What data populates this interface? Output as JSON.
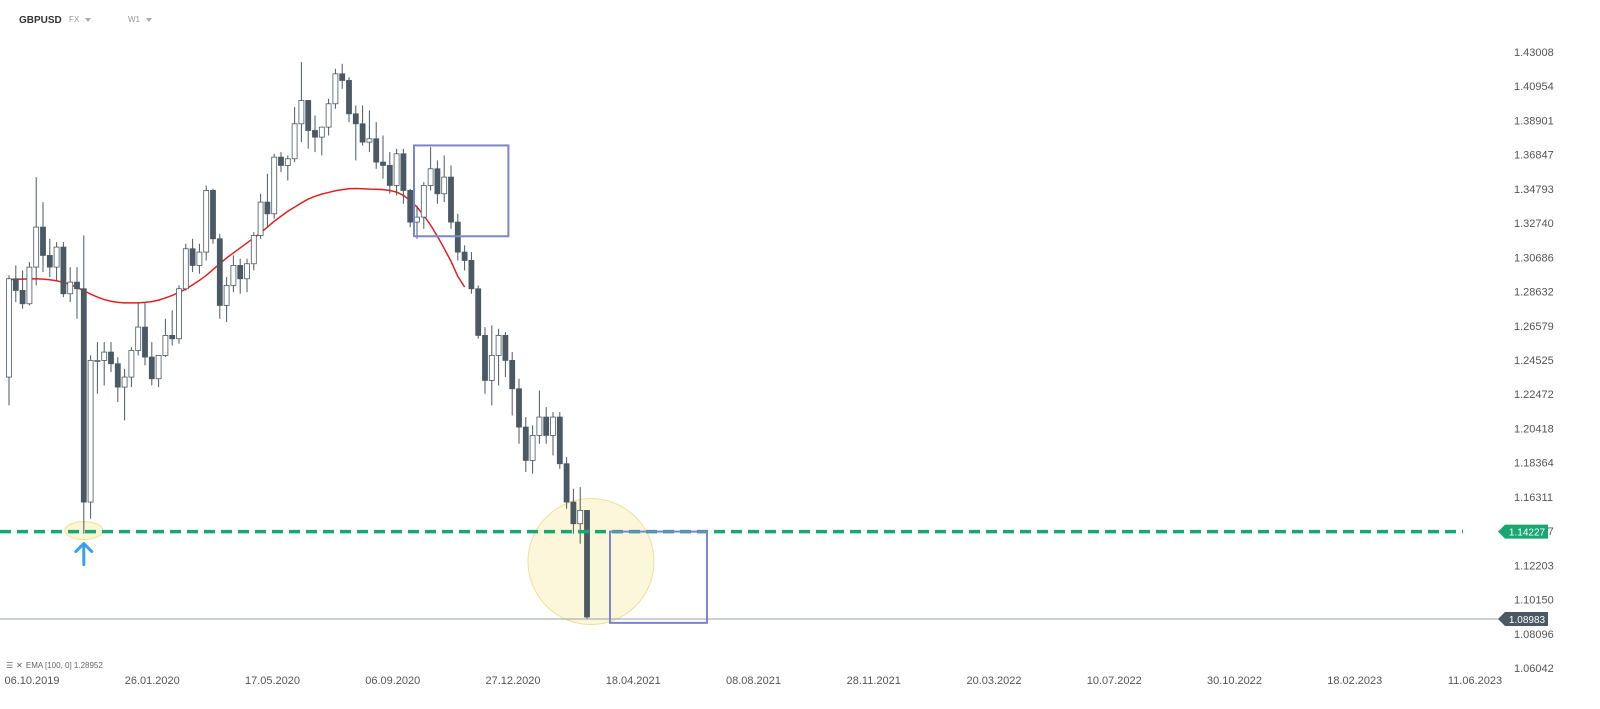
{
  "header": {
    "symbol": "GBPUSD",
    "market": "FX",
    "timeframe": "W1"
  },
  "indicator": {
    "menu_icon": "menu-icon",
    "close_icon": "close-icon",
    "label": "EMA [100, 0] 1.28952"
  },
  "colors": {
    "bull_body": "#ffffff",
    "bear_body": "#4a5963",
    "wick": "#4a5963",
    "ema": "#e02020",
    "support": "#19a673",
    "price_line": "#9aa0a6",
    "box": "#7a86cc",
    "highlight_fill": "#fbf6d3",
    "highlight_stroke": "#efe09a",
    "arrow": "#3aa0ee",
    "current_tag": "#4a5963"
  },
  "chart_data": {
    "type": "candlestick",
    "ylim": [
      1.06042,
      1.43008
    ],
    "y_ticks": [
      "1.43008",
      "1.40954",
      "1.38901",
      "1.36847",
      "1.34793",
      "1.32740",
      "1.30686",
      "1.28632",
      "1.26579",
      "1.24525",
      "1.22472",
      "1.20418",
      "1.18364",
      "1.16311",
      "1.14257",
      "1.12203",
      "1.10150",
      "1.08096",
      "1.06042"
    ],
    "x_ticks": [
      "06.10.2019",
      "26.01.2020",
      "17.05.2020",
      "06.09.2020",
      "27.12.2020",
      "18.04.2021",
      "08.08.2021",
      "28.11.2021",
      "20.03.2022",
      "10.07.2022",
      "30.10.2022",
      "18.02.2023",
      "11.06.2023"
    ],
    "support_level": 1.14227,
    "current_price": 1.08983,
    "ema_period": 100,
    "ema_value": 1.28952,
    "ema": [
      1.2935,
      1.2937,
      1.2938,
      1.2939,
      1.294,
      1.2938,
      1.2934,
      1.2928,
      1.2918,
      1.2905,
      1.2888,
      1.2868,
      1.2848,
      1.283,
      1.2815,
      1.2805,
      1.2798,
      1.2795,
      1.2795,
      1.2795,
      1.2798,
      1.2803,
      1.2812,
      1.2825,
      1.284,
      1.2858,
      1.2878,
      1.2903,
      1.293,
      1.296,
      1.2995,
      1.303,
      1.3065,
      1.3095,
      1.3125,
      1.3155,
      1.3185,
      1.3215,
      1.325,
      1.3285,
      1.3315,
      1.3345,
      1.337,
      1.3395,
      1.3418,
      1.3435,
      1.3448,
      1.3458,
      1.3468,
      1.3475,
      1.348,
      1.3482,
      1.348,
      1.3478,
      1.3477,
      1.3475,
      1.347,
      1.346,
      1.344,
      1.341,
      1.337,
      1.332,
      1.3262,
      1.3195,
      1.3122,
      1.3045,
      1.2955,
      1.289
    ],
    "candles": [
      [
        1.235,
        1.296,
        1.218,
        1.294
      ],
      [
        1.294,
        1.302,
        1.28,
        1.287
      ],
      [
        1.287,
        1.299,
        1.276,
        1.279
      ],
      [
        1.279,
        1.304,
        1.278,
        1.301
      ],
      [
        1.301,
        1.355,
        1.29,
        1.325
      ],
      [
        1.325,
        1.34,
        1.298,
        1.308
      ],
      [
        1.308,
        1.318,
        1.295,
        1.301
      ],
      [
        1.301,
        1.316,
        1.293,
        1.313
      ],
      [
        1.313,
        1.316,
        1.283,
        1.285
      ],
      [
        1.285,
        1.301,
        1.28,
        1.292
      ],
      [
        1.292,
        1.301,
        1.27,
        1.288
      ],
      [
        1.288,
        1.32,
        1.141,
        1.16
      ],
      [
        1.16,
        1.248,
        1.15,
        1.245
      ],
      [
        1.245,
        1.256,
        1.225,
        1.245
      ],
      [
        1.245,
        1.256,
        1.23,
        1.25
      ],
      [
        1.25,
        1.256,
        1.238,
        1.243
      ],
      [
        1.243,
        1.247,
        1.22,
        1.229
      ],
      [
        1.229,
        1.24,
        1.209,
        1.235
      ],
      [
        1.235,
        1.253,
        1.229,
        1.251
      ],
      [
        1.251,
        1.28,
        1.248,
        1.265
      ],
      [
        1.265,
        1.28,
        1.242,
        1.247
      ],
      [
        1.247,
        1.256,
        1.23,
        1.234
      ],
      [
        1.234,
        1.245,
        1.229,
        1.248
      ],
      [
        1.248,
        1.27,
        1.247,
        1.26
      ],
      [
        1.26,
        1.275,
        1.254,
        1.258
      ],
      [
        1.258,
        1.29,
        1.255,
        1.288
      ],
      [
        1.288,
        1.315,
        1.287,
        1.312
      ],
      [
        1.312,
        1.318,
        1.298,
        1.302
      ],
      [
        1.302,
        1.315,
        1.297,
        1.31
      ],
      [
        1.31,
        1.35,
        1.305,
        1.347
      ],
      [
        1.347,
        1.348,
        1.315,
        1.318
      ],
      [
        1.318,
        1.321,
        1.27,
        1.278
      ],
      [
        1.278,
        1.295,
        1.268,
        1.29
      ],
      [
        1.29,
        1.308,
        1.286,
        1.302
      ],
      [
        1.302,
        1.306,
        1.285,
        1.294
      ],
      [
        1.294,
        1.306,
        1.286,
        1.303
      ],
      [
        1.303,
        1.322,
        1.299,
        1.32
      ],
      [
        1.32,
        1.345,
        1.318,
        1.34
      ],
      [
        1.34,
        1.357,
        1.325,
        1.333
      ],
      [
        1.333,
        1.369,
        1.33,
        1.367
      ],
      [
        1.367,
        1.37,
        1.358,
        1.362
      ],
      [
        1.362,
        1.368,
        1.353,
        1.366
      ],
      [
        1.366,
        1.397,
        1.364,
        1.387
      ],
      [
        1.387,
        1.424,
        1.376,
        1.401
      ],
      [
        1.401,
        1.401,
        1.372,
        1.383
      ],
      [
        1.383,
        1.392,
        1.37,
        1.379
      ],
      [
        1.379,
        1.385,
        1.368,
        1.385
      ],
      [
        1.385,
        1.402,
        1.38,
        1.399
      ],
      [
        1.399,
        1.42,
        1.396,
        1.417
      ],
      [
        1.417,
        1.423,
        1.408,
        1.413
      ],
      [
        1.413,
        1.415,
        1.388,
        1.393
      ],
      [
        1.393,
        1.398,
        1.365,
        1.387
      ],
      [
        1.387,
        1.398,
        1.374,
        1.376
      ],
      [
        1.376,
        1.395,
        1.37,
        1.378
      ],
      [
        1.378,
        1.388,
        1.36,
        1.364
      ],
      [
        1.364,
        1.38,
        1.354,
        1.362
      ],
      [
        1.362,
        1.37,
        1.345,
        1.35
      ],
      [
        1.35,
        1.372,
        1.344,
        1.369
      ],
      [
        1.369,
        1.372,
        1.339,
        1.347
      ],
      [
        1.347,
        1.348,
        1.325,
        1.328
      ],
      [
        1.328,
        1.338,
        1.318,
        1.331
      ],
      [
        1.331,
        1.352,
        1.324,
        1.35
      ],
      [
        1.35,
        1.373,
        1.347,
        1.36
      ],
      [
        1.36,
        1.365,
        1.339,
        1.345
      ],
      [
        1.345,
        1.368,
        1.34,
        1.355
      ],
      [
        1.355,
        1.362,
        1.324,
        1.328
      ],
      [
        1.328,
        1.333,
        1.305,
        1.31
      ],
      [
        1.31,
        1.314,
        1.299,
        1.305
      ],
      [
        1.305,
        1.31,
        1.285,
        1.288
      ],
      [
        1.288,
        1.29,
        1.258,
        1.26
      ],
      [
        1.26,
        1.265,
        1.225,
        1.233
      ],
      [
        1.233,
        1.266,
        1.218,
        1.248
      ],
      [
        1.248,
        1.264,
        1.23,
        1.26
      ],
      [
        1.26,
        1.262,
        1.235,
        1.245
      ],
      [
        1.245,
        1.25,
        1.212,
        1.228
      ],
      [
        1.228,
        1.234,
        1.195,
        1.205
      ],
      [
        1.205,
        1.211,
        1.178,
        1.185
      ],
      [
        1.185,
        1.206,
        1.177,
        1.2
      ],
      [
        1.2,
        1.227,
        1.195,
        1.211
      ],
      [
        1.211,
        1.217,
        1.195,
        1.2
      ],
      [
        1.2,
        1.214,
        1.188,
        1.211
      ],
      [
        1.211,
        1.214,
        1.18,
        1.183
      ],
      [
        1.183,
        1.187,
        1.156,
        1.16
      ],
      [
        1.16,
        1.168,
        1.141,
        1.147
      ],
      [
        1.147,
        1.169,
        1.135,
        1.155
      ],
      [
        1.155,
        1.155,
        1.09,
        1.091
      ]
    ]
  }
}
